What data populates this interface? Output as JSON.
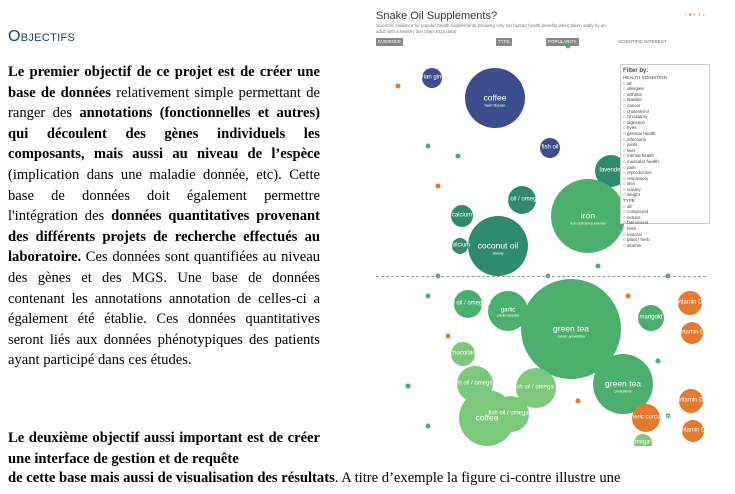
{
  "doc": {
    "heading": "Objectifs",
    "p1": [
      {
        "t": "Le premier objectif de ce projet est de créer une base de données",
        "b": true
      },
      {
        "t": " relativement simple permettant de ranger des ",
        "b": false
      },
      {
        "t": "annotations (fonctionnelles et autres) qui découlent des gènes individuels les composants, mais aussi au niveau de l’espèce",
        "b": true
      },
      {
        "t": " (implication dans une maladie donnée, etc). Cette base de données doit également permettre l'intégration des ",
        "b": false
      },
      {
        "t": "données quantitatives provenant des différents projets de recherche effectués au laboratoire.",
        "b": true
      },
      {
        "t": " Ces données sont quantifiées au niveau des gènes et des MGS. Une base de données contenant les annotations annotation de celles-ci a également été établie. Ces données quantitatives seront liés aux données phénotypiques des patients ayant participé dans ces études.",
        "b": false
      }
    ],
    "p2": {
      "t": "Le deuxième objectif aussi important est de créer une interface de gestion et de requête",
      "b": true
    },
    "p2b": [
      {
        "t": "de cette base mais aussi de visualisation des résultats",
        "b": true
      },
      {
        "t": ". A titre d’exemple la figure ci-contre illustre une",
        "b": false
      }
    ]
  },
  "figure": {
    "title": "Snake Oil Supplements?",
    "subtitle": "Scientific evidence for popular health supplements\nShowing only top human health benefits when taken orally by an adult with a healthy diet (Sep 2015 data)",
    "logo": "○ ● ◐ ◑ ◒",
    "tabs": [
      "EVIDENCE",
      "TYPE",
      "POPULARITY",
      "SCIENTIFIC INTEREST"
    ],
    "filter_title": "Filter by:",
    "filter_items": [
      "HEALTH CONDITION",
      "all",
      "allergies",
      "arthritis",
      "bladder",
      "cancer",
      "cholesterol",
      "circulatory",
      "digestion",
      "eyes",
      "general health",
      "infections",
      "joints",
      "liver",
      "mental health",
      "muscular health",
      "pain",
      "reproductive",
      "respiratory",
      "skin",
      "urinary",
      "weight",
      "TYPE",
      "all",
      "compound",
      "extract",
      "fat/mineral",
      "herb",
      "mineral",
      "plant / herb",
      "vitamin"
    ],
    "colors": {
      "dark_blue": "#3d4e8f",
      "teal": "#2e8b6e",
      "green": "#4caf6e",
      "light_green": "#7cc87a",
      "orange": "#e57a2e"
    },
    "bubbles": [
      {
        "label": "coffee",
        "sub": "heart disease",
        "c": "dark_blue"
      },
      {
        "label": "Siberian ginseng",
        "c": "dark_blue"
      },
      {
        "label": "fish oil",
        "c": "dark_blue"
      },
      {
        "label": "fish oil / omega 3",
        "c": "teal"
      },
      {
        "label": "lavender",
        "c": "teal"
      },
      {
        "label": "calcium",
        "c": "teal"
      },
      {
        "label": "coconut oil",
        "sub": "obesity",
        "c": "teal"
      },
      {
        "label": "iron",
        "sub": "iron deficiency anemia",
        "c": "green"
      },
      {
        "label": "calcium",
        "c": "teal"
      },
      {
        "label": "fish oil / omega 3",
        "c": "green"
      },
      {
        "label": "garlic",
        "sub": "cardiovascular",
        "c": "green"
      },
      {
        "label": "green tea",
        "sub": "cancer prevention",
        "c": "green"
      },
      {
        "label": "fish oil / omega 3",
        "c": "light_green"
      },
      {
        "label": "coffee",
        "c": "light_green"
      },
      {
        "label": "fish oil / omega 3",
        "c": "light_green"
      },
      {
        "label": "fish oil / omega 3",
        "c": "light_green"
      },
      {
        "label": "green tea",
        "sub": "cholesterol",
        "c": "green"
      },
      {
        "label": "vitamin D",
        "c": "orange"
      },
      {
        "label": "vitamin D",
        "c": "orange"
      },
      {
        "label": "vitamin D",
        "c": "orange"
      },
      {
        "label": "vitamin D",
        "c": "orange"
      },
      {
        "label": "turmeric curcumin",
        "c": "orange"
      },
      {
        "label": "omega 3",
        "c": "light_green"
      },
      {
        "label": "marigold",
        "c": "green"
      },
      {
        "label": "chocolate",
        "c": "light_green"
      }
    ]
  }
}
